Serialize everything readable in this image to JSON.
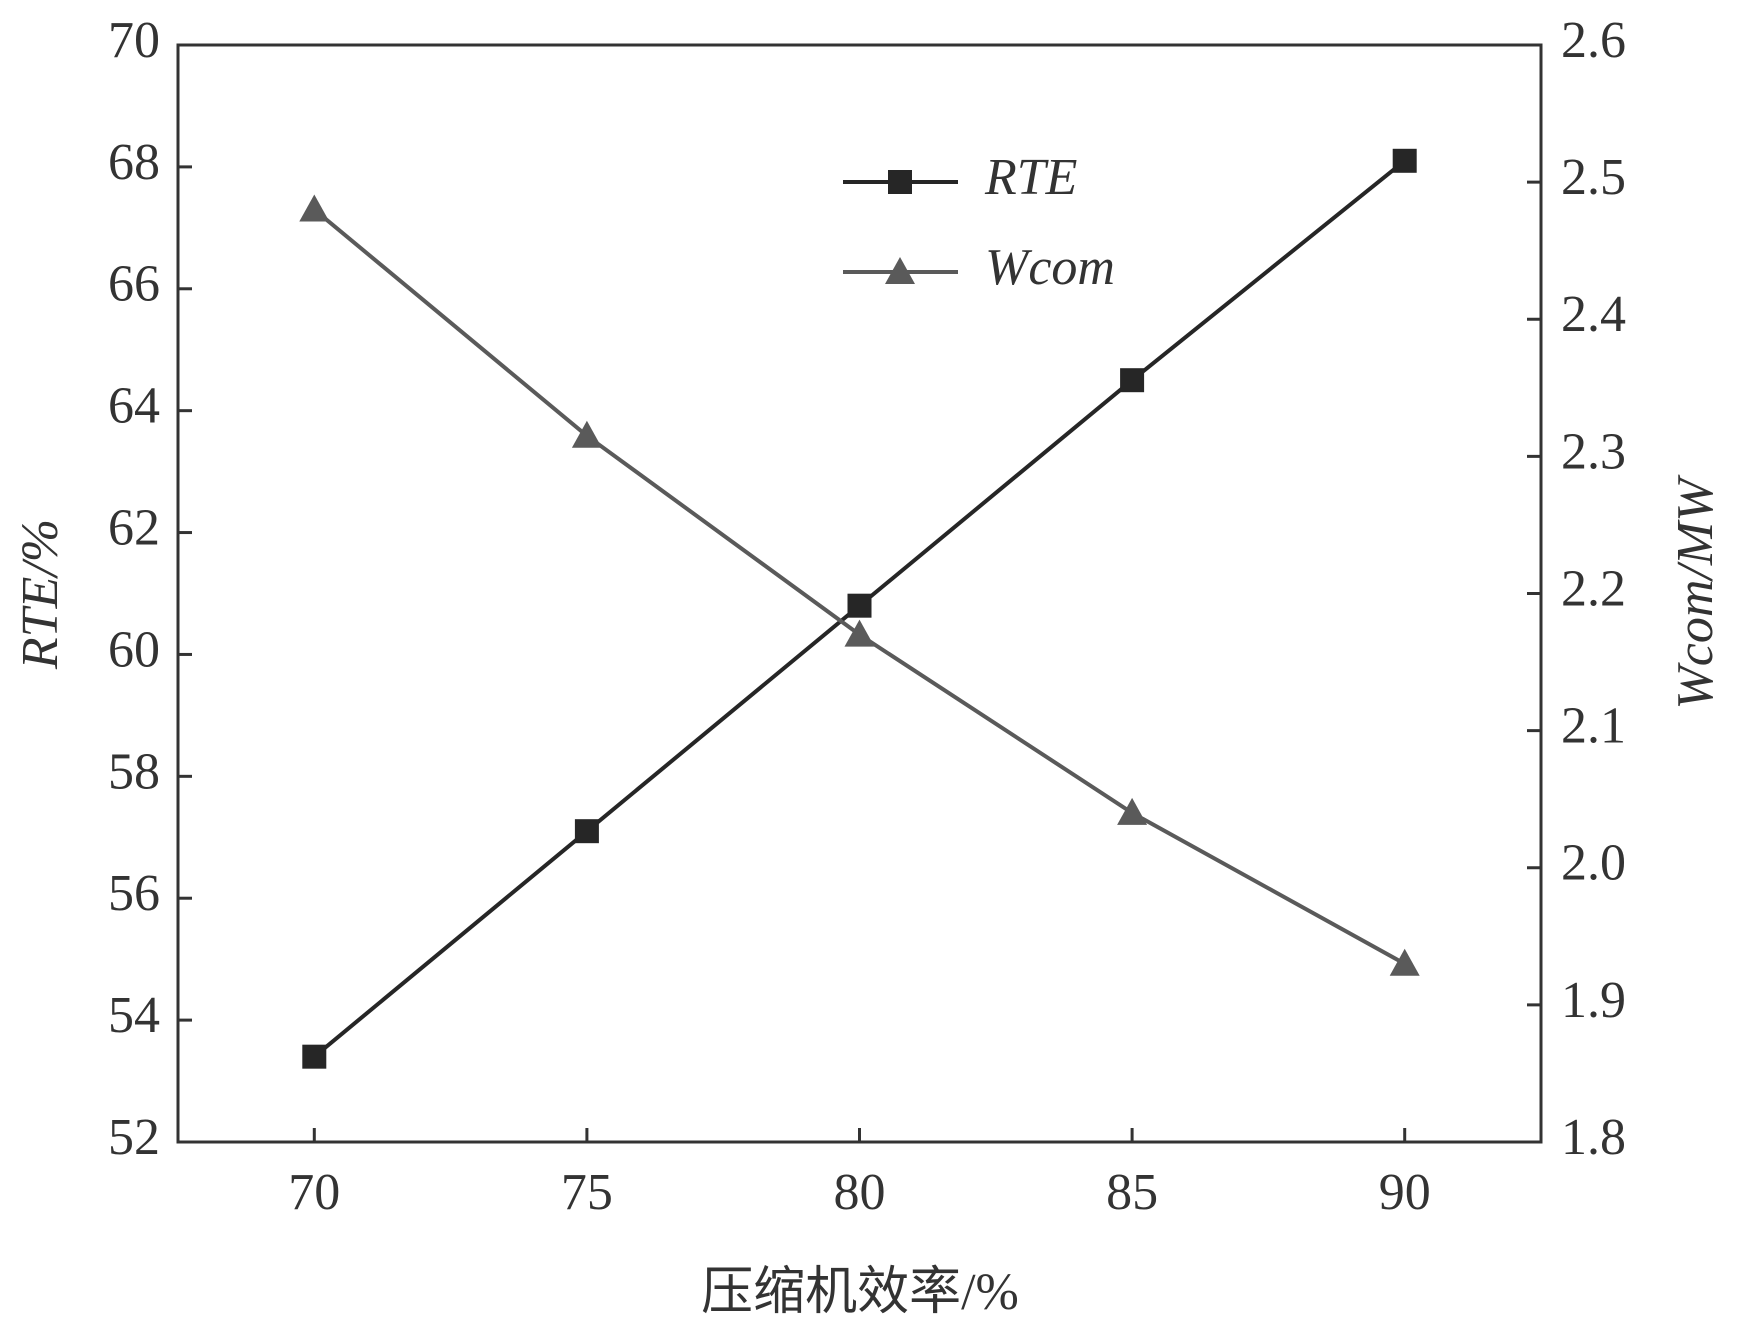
{
  "chart_data": {
    "type": "line",
    "x_label": "压缩机效率/%",
    "y_label": "RTE/%",
    "y2_label": "Wcom/MW",
    "x": [
      70,
      75,
      80,
      85,
      90
    ],
    "xlim": [
      67.5,
      92.5
    ],
    "xticks": [
      70,
      75,
      80,
      85,
      90
    ],
    "ylim": [
      52,
      70
    ],
    "yticks": [
      52,
      54,
      56,
      58,
      60,
      62,
      64,
      66,
      68,
      70
    ],
    "y2lim": [
      1.8,
      2.6
    ],
    "y2ticks": [
      {
        "value": 1.8,
        "label": "1.8"
      },
      {
        "value": 1.9,
        "label": "1.9"
      },
      {
        "value": 2.0,
        "label": "2.0"
      },
      {
        "value": 2.1,
        "label": "2.1"
      },
      {
        "value": 2.2,
        "label": "2.2"
      },
      {
        "value": 2.3,
        "label": "2.3"
      },
      {
        "value": 2.4,
        "label": "2.4"
      },
      {
        "value": 2.5,
        "label": "2.5"
      },
      {
        "value": 2.6,
        "label": "2.6"
      }
    ],
    "legend": "upper center",
    "series": [
      {
        "name": "RTE",
        "color": "#262626",
        "marker": "square",
        "values": [
          53.4,
          57.1,
          60.8,
          64.5,
          68.1
        ]
      },
      {
        "name": "Wcom",
        "color": "#5a5a5a",
        "marker": "triangle",
        "axis": "y2",
        "values": [
          2.48,
          2.315,
          2.17,
          2.04,
          1.93
        ]
      }
    ]
  }
}
